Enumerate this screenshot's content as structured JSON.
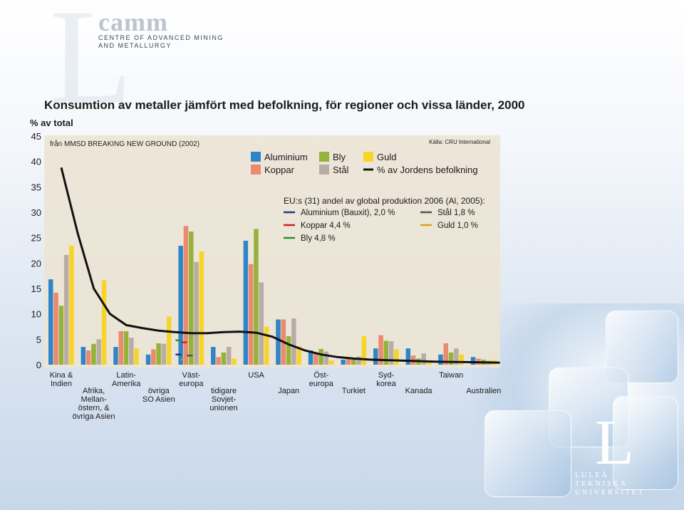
{
  "header": {
    "logo_mark": "camm",
    "logo_line1": "CENTRE OF ADVANCED MINING",
    "logo_line2": "AND METALLURGY"
  },
  "chart_data": {
    "type": "bar",
    "title": "Konsumtion av metaller jämfört med befolkning, för regioner och vissa länder, 2000",
    "ylabel": "% av total",
    "ylim": [
      0,
      45
    ],
    "yticks": [
      0,
      5,
      10,
      15,
      20,
      25,
      30,
      35,
      40,
      45
    ],
    "grid": false,
    "legend_position": "top-right",
    "source_left": "från MMSD BREAKING NEW GROUND (2002)",
    "source_right": "Källa: CRU International",
    "categories": [
      [
        "Kina &",
        "Indien"
      ],
      [
        "Afrika,",
        "Mellan-",
        "östern, &",
        "övriga Asien"
      ],
      [
        "Latin-",
        "Amerika"
      ],
      [
        "övriga",
        "SO Asien"
      ],
      [
        "Väst-",
        "europa"
      ],
      [
        "tidigare",
        "Sovjet-",
        "unionen"
      ],
      [
        "USA"
      ],
      [
        "Japan"
      ],
      [
        "Öst-",
        "europa"
      ],
      [
        "Turkiet"
      ],
      [
        "Syd-",
        "korea"
      ],
      [
        "Kanada"
      ],
      [
        "Taiwan"
      ],
      [
        "Australien"
      ]
    ],
    "series": [
      {
        "name": "Aluminium",
        "color": "#2e86c8",
        "values": [
          16.8,
          3.5,
          3.5,
          2.0,
          23.4,
          3.5,
          24.4,
          8.9,
          2.8,
          1.0,
          3.2,
          3.2,
          2.0,
          1.5
        ]
      },
      {
        "name": "Koppar",
        "color": "#ea8a6e",
        "values": [
          14.2,
          2.8,
          6.6,
          3.0,
          27.3,
          1.5,
          19.8,
          8.9,
          2.4,
          1.5,
          5.8,
          1.8,
          4.2,
          1.2
        ]
      },
      {
        "name": "Bly",
        "color": "#95b23a",
        "values": [
          11.6,
          4.1,
          6.6,
          4.2,
          26.2,
          2.4,
          26.7,
          5.6,
          3.1,
          1.2,
          4.7,
          1.2,
          2.4,
          1.0
        ]
      },
      {
        "name": "Stål",
        "color": "#b8ada6",
        "values": [
          21.6,
          5.0,
          5.3,
          4.1,
          20.2,
          3.5,
          16.2,
          9.1,
          2.6,
          1.6,
          4.6,
          2.2,
          3.2,
          0.8
        ]
      },
      {
        "name": "Guld",
        "color": "#f7d42a",
        "values": [
          23.4,
          16.6,
          3.2,
          9.5,
          22.3,
          1.2,
          7.5,
          3.6,
          0.8,
          5.6,
          3.0,
          0.8,
          2.0,
          0.9
        ]
      }
    ],
    "line": {
      "name": "% av Jordens befolkning",
      "color": "#111111",
      "x": [
        0,
        0.5,
        1,
        1.5,
        2,
        2.5,
        3,
        3.5,
        4,
        4.5,
        5,
        5.5,
        6,
        6.5,
        7,
        7.5,
        8,
        8.5,
        9,
        9.5,
        10,
        10.5,
        11,
        11.5,
        12,
        12.5,
        13,
        13.5
      ],
      "y": [
        38.8,
        26,
        15,
        10,
        7.8,
        7.2,
        6.7,
        6.4,
        6.2,
        6.2,
        6.4,
        6.5,
        6.3,
        5.5,
        4.0,
        2.8,
        2.0,
        1.5,
        1.2,
        1.0,
        0.9,
        0.8,
        0.7,
        0.6,
        0.55,
        0.5,
        0.45,
        0.4
      ]
    },
    "eu_box": {
      "title": "EU:s (31) andel av global produktion 2006 (Al, 2005):",
      "items": [
        {
          "label": "Aluminium (Bauxit), 2,0 %",
          "color": "#1f3a8a",
          "value": 2.0
        },
        {
          "label": "Stål 1,8 %",
          "color": "#555555",
          "value": 1.8
        },
        {
          "label": "Koppar 4,4 %",
          "color": "#cc2222",
          "value": 4.4
        },
        {
          "label": "Guld 1,0 %",
          "color": "#e0a020",
          "value": 1.0
        },
        {
          "label": "Bly 4,8 %",
          "color": "#2e8b3a",
          "value": 4.8
        }
      ]
    }
  },
  "footer": {
    "ltu_letter": "L",
    "ltu_line1": "LULEÅ",
    "ltu_line2": "TEKNISKA",
    "ltu_line3": "UNIVERSITET"
  }
}
